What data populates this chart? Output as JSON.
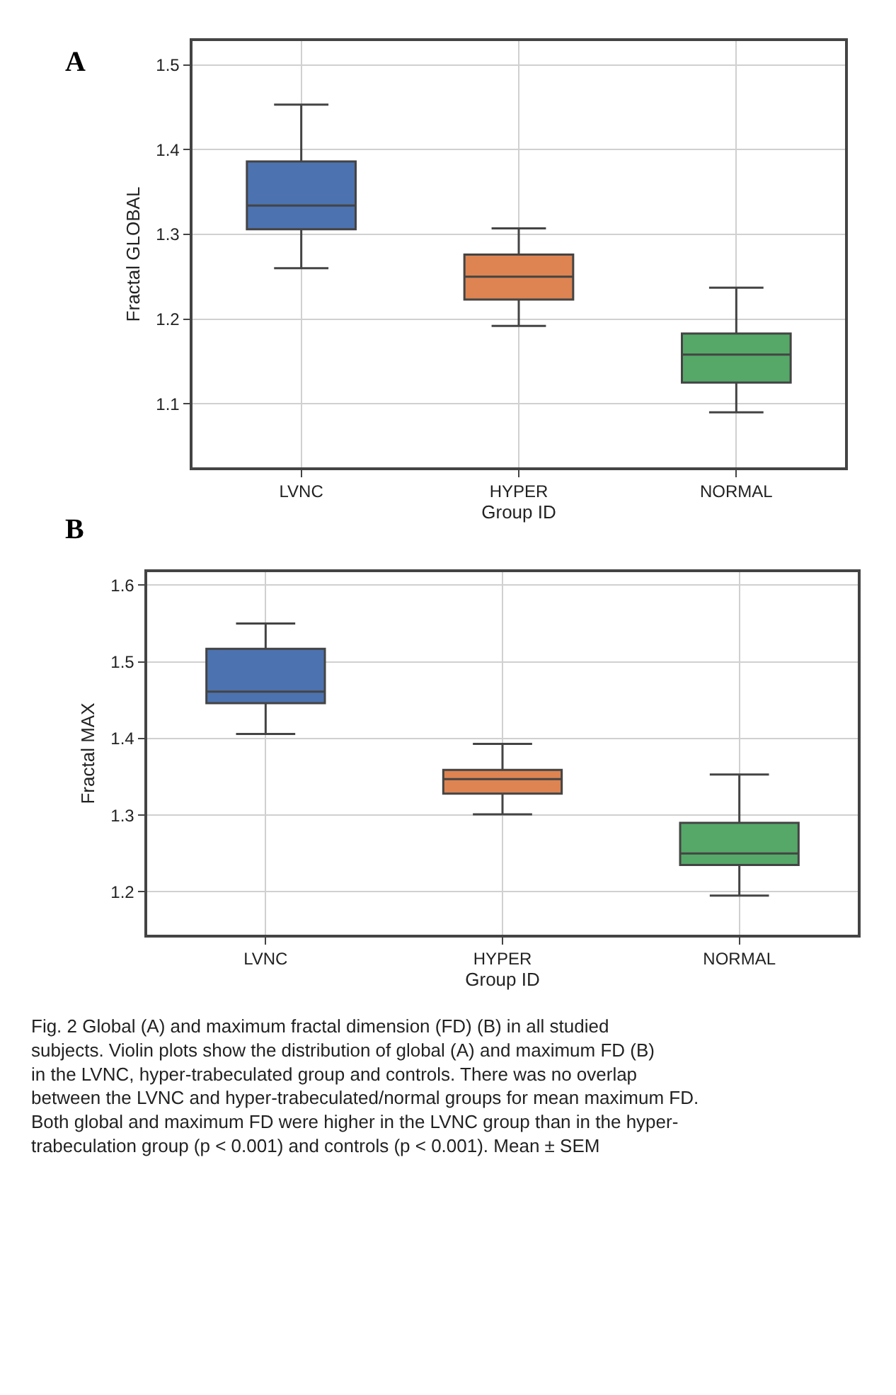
{
  "chart_data": [
    {
      "type": "box",
      "title": "A",
      "ylabel": "Fractal GLOBAL",
      "xlabel": "Group ID",
      "categories": [
        "LVNC",
        "HYPER",
        "NORMAL"
      ],
      "colors": [
        "#4c72b0",
        "#dd8452",
        "#55a868"
      ],
      "boxes": [
        {
          "low": 1.26,
          "q1": 1.306,
          "median": 1.334,
          "q3": 1.386,
          "high": 1.453
        },
        {
          "low": 1.192,
          "q1": 1.223,
          "median": 1.25,
          "q3": 1.276,
          "high": 1.307
        },
        {
          "low": 1.09,
          "q1": 1.125,
          "median": 1.158,
          "q3": 1.183,
          "high": 1.237
        }
      ],
      "ylim": [
        1.025,
        1.528
      ],
      "yticks": [
        1.1,
        1.2,
        1.3,
        1.4,
        1.5
      ],
      "grid": true,
      "legend": false
    },
    {
      "type": "box",
      "title": "B",
      "ylabel": "Fractal MAX",
      "xlabel": "Group ID",
      "categories": [
        "LVNC",
        "HYPER",
        "NORMAL"
      ],
      "colors": [
        "#4c72b0",
        "#dd8452",
        "#55a868"
      ],
      "boxes": [
        {
          "low": 1.406,
          "q1": 1.446,
          "median": 1.461,
          "q3": 1.517,
          "high": 1.55
        },
        {
          "low": 1.301,
          "q1": 1.328,
          "median": 1.347,
          "q3": 1.359,
          "high": 1.393
        },
        {
          "low": 1.195,
          "q1": 1.235,
          "median": 1.25,
          "q3": 1.29,
          "high": 1.353
        }
      ],
      "ylim": [
        1.144,
        1.617
      ],
      "yticks": [
        1.2,
        1.3,
        1.4,
        1.5,
        1.6
      ],
      "grid": true,
      "legend": false,
      "annotations": [
        "Fig. 2 Global (A) and maximum fractal dimension (FD) (B) in all studied subjects. Violin plots show the distribution of global (A) and maximum FD (B) in the LVNC, hyper-trabeculated group and controls. There was no overlap between the LVNC and hyper-trabeculated/normal groups for mean maximum FD. Both global and maximum FD were higher in the LVNC group than in the hyper-trabeculation group (p < 0.001) and controls (p < 0.001). Mean ± SEM"
      ]
    }
  ]
}
